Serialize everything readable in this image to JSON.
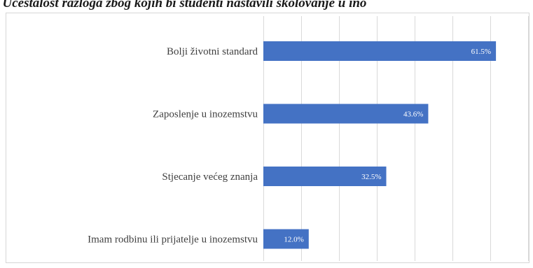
{
  "caption": ". Učestalost razloga zbog kojih bi studenti nastavili školovanje u ino",
  "chart_data": {
    "type": "bar",
    "orientation": "horizontal",
    "categories": [
      "Bolji životni standard",
      "Zaposlenje u inozemstvu",
      "Stjecanje većeg znanja",
      "Imam rodbinu ili prijatelje u inozemstvu"
    ],
    "values": [
      61.5,
      43.6,
      32.5,
      12.0
    ],
    "value_labels": [
      "61.5%",
      "43.6%",
      "32.5%",
      "12.0%"
    ],
    "xlim": [
      0,
      70
    ],
    "grid": true,
    "bar_color": "#4472c4",
    "title": "",
    "xlabel": "",
    "ylabel": ""
  }
}
